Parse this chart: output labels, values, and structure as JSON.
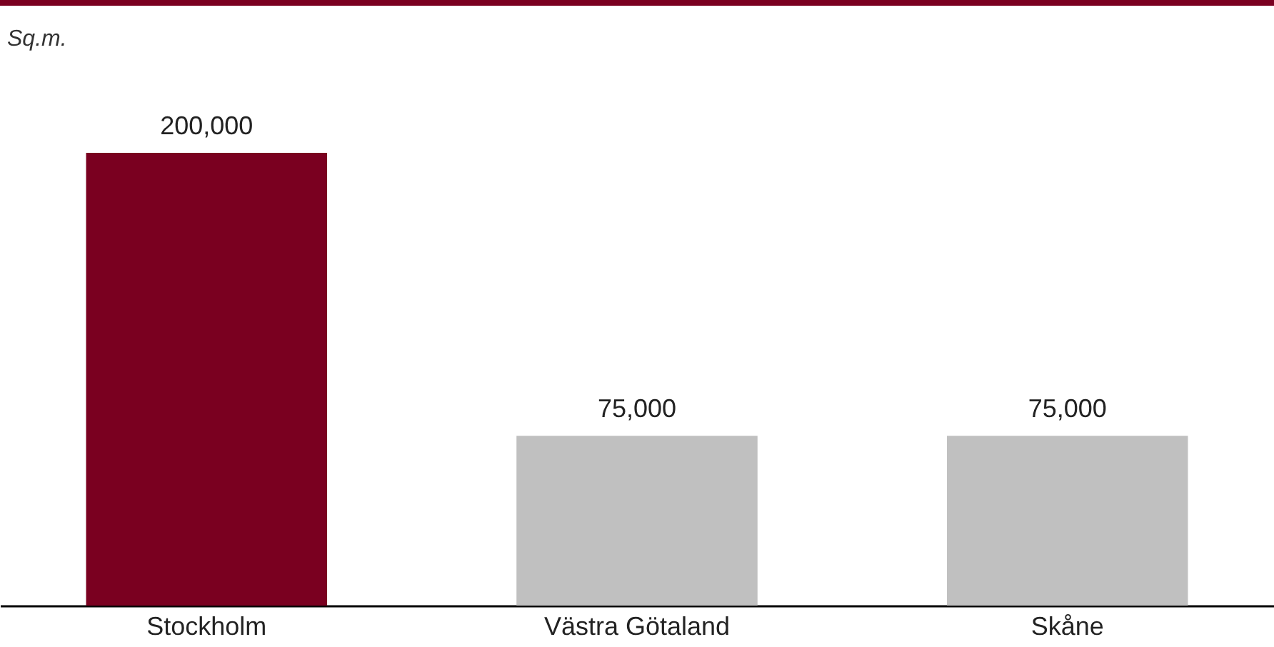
{
  "chart_data": {
    "type": "bar",
    "annotations": [
      "Sq.m."
    ],
    "categories": [
      "Stockholm",
      "Västra Götaland",
      "Skåne"
    ],
    "values": [
      200000,
      75000,
      75000
    ],
    "value_labels": [
      "200,000",
      "75,000",
      "75,000"
    ],
    "colors": [
      "#7a0020",
      "#c0c0c0",
      "#c0c0c0"
    ],
    "tick_labels": "x"
  }
}
